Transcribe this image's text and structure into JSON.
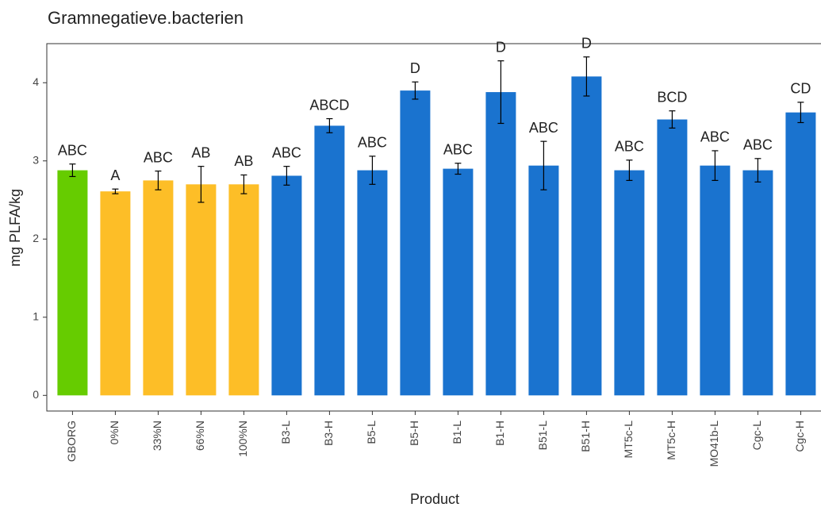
{
  "chart_data": {
    "type": "bar",
    "title": "Gramnegatieve.bacterien",
    "x_label": "Product",
    "y_label": "mg PLFA/kg",
    "categories": [
      "GBORG",
      "0%N",
      "33%N",
      "66%N",
      "100%N",
      "B3-L",
      "B3-H",
      "B5-L",
      "B5-H",
      "B1-L",
      "B1-H",
      "B51-L",
      "B51-H",
      "MT5c-L",
      "MT5c-H",
      "MO41b-L",
      "Cgc-L",
      "Cgc-H"
    ],
    "values": [
      2.88,
      2.61,
      2.75,
      2.7,
      2.7,
      2.81,
      3.45,
      2.88,
      3.9,
      2.9,
      3.88,
      2.94,
      4.08,
      2.88,
      3.53,
      2.94,
      2.88,
      3.62
    ],
    "errors": [
      0.08,
      0.03,
      0.12,
      0.23,
      0.12,
      0.12,
      0.09,
      0.18,
      0.11,
      0.07,
      0.4,
      0.31,
      0.25,
      0.13,
      0.11,
      0.19,
      0.15,
      0.13
    ],
    "annotations": [
      "ABC",
      "A",
      "ABC",
      "AB",
      "AB",
      "ABC",
      "ABCD",
      "ABC",
      "D",
      "ABC",
      "D",
      "ABC",
      "D",
      "ABC",
      "BCD",
      "ABC",
      "ABC",
      "CD"
    ],
    "colors": [
      "#66cc00",
      "#fdbe27",
      "#fdbe27",
      "#fdbe27",
      "#fdbe27",
      "#1a73cf",
      "#1a73cf",
      "#1a73cf",
      "#1a73cf",
      "#1a73cf",
      "#1a73cf",
      "#1a73cf",
      "#1a73cf",
      "#1a73cf",
      "#1a73cf",
      "#1a73cf",
      "#1a73cf",
      "#1a73cf"
    ],
    "ylim": [
      -0.2,
      4.5
    ],
    "yticks": [
      0,
      1,
      2,
      3,
      4
    ]
  }
}
